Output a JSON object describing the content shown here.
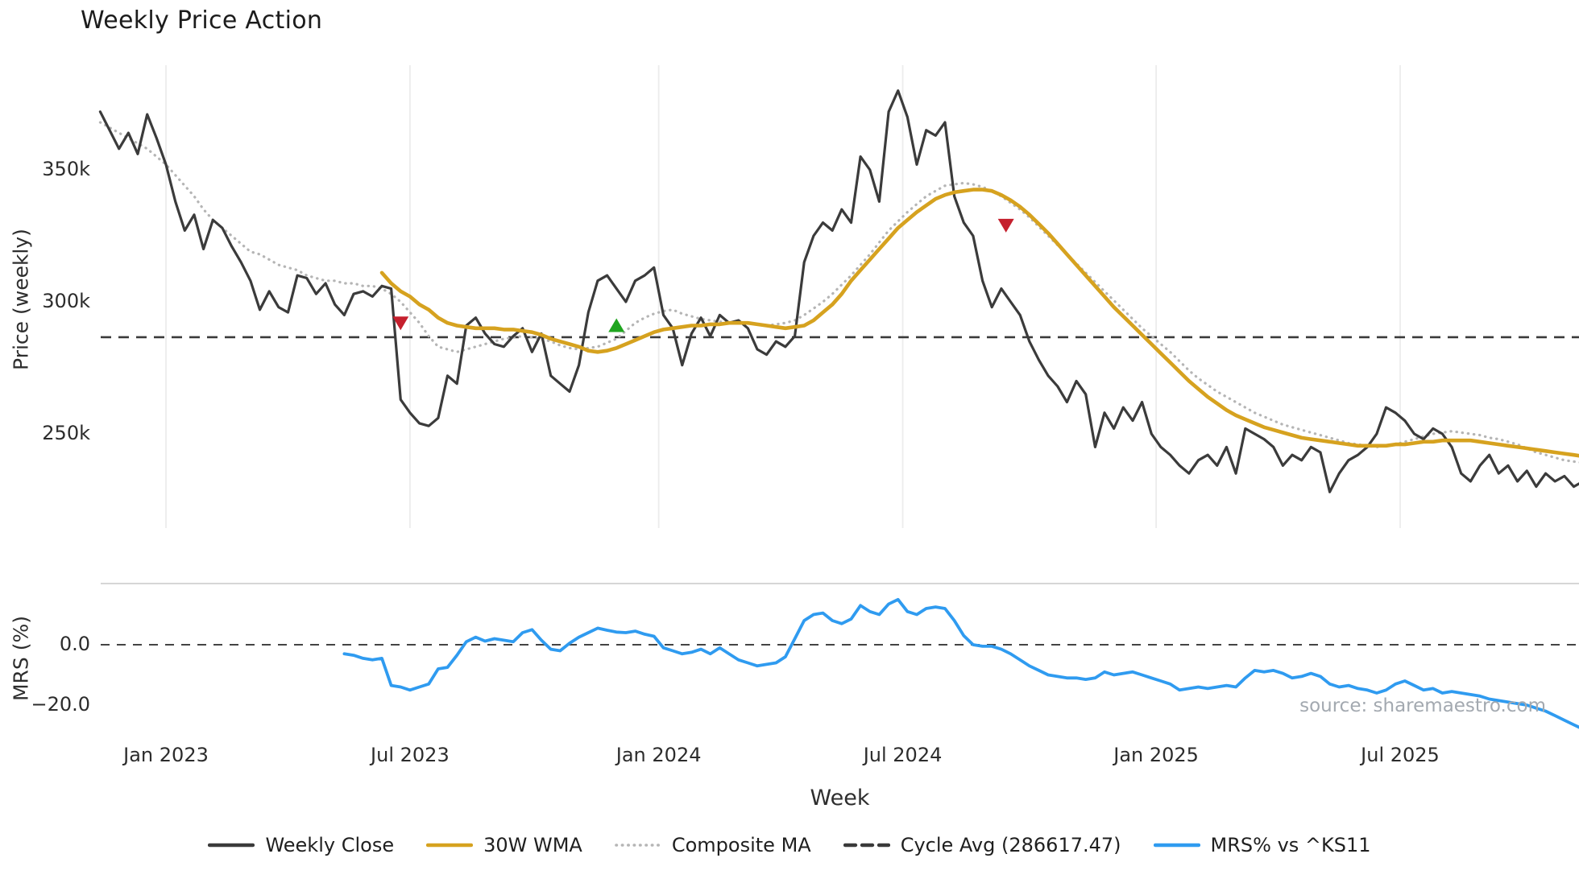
{
  "title": "Weekly Price Action",
  "source_credit": "source: sharemaestro.com",
  "colors": {
    "close": "#3b3b3b",
    "wma": "#d6a21f",
    "composite": "#b5b5b5",
    "cycle": "#3a3a3a",
    "mrs": "#2f9bf0",
    "sell": "#c5202e",
    "buy": "#1fa51f",
    "grid": "#ececec",
    "separator": "#c9c9c9",
    "zero": "#444444"
  },
  "chart_data": {
    "type": "line",
    "title": "Weekly Price Action",
    "unit_note": "price series values are in thousands (k); week index 0 = left edge of plot (~mid-Nov 2022), one point per week",
    "x_axis": {
      "label": "Week",
      "ticks": [
        {
          "label": "Jan 2023",
          "week": 7
        },
        {
          "label": "Jul 2023",
          "week": 33
        },
        {
          "label": "Jan 2024",
          "week": 59.5
        },
        {
          "label": "Jul 2024",
          "week": 85.5
        },
        {
          "label": "Jan 2025",
          "week": 112.5
        },
        {
          "label": "Jul 2025",
          "week": 138.5
        }
      ]
    },
    "price_panel": {
      "ylabel": "Price (weekly)",
      "yticks": [
        {
          "label": "350k",
          "value": 350
        },
        {
          "label": "300k",
          "value": 300
        },
        {
          "label": "250k",
          "value": 250
        }
      ],
      "ylim_k": [
        213,
        392
      ]
    },
    "mrs_panel": {
      "ylabel": "MRS (%)",
      "yticks": [
        {
          "label": "0.0",
          "value": 0
        },
        {
          "label": "−20.0",
          "value": -20
        }
      ],
      "ylim": [
        -30,
        20
      ]
    },
    "cycle_avg_value": 286617.47,
    "series": [
      {
        "name": "Composite MA",
        "color_key": "composite",
        "style": "dotted",
        "width": 3.2,
        "panel": "price",
        "start_week": 0,
        "values": [
          368,
          366,
          364,
          362,
          360,
          358,
          355,
          352,
          348,
          344,
          340,
          335,
          331,
          328,
          325,
          322,
          319,
          318,
          316,
          314,
          313,
          312,
          310,
          309,
          308,
          308,
          307,
          307,
          306,
          306,
          305,
          303,
          300,
          296,
          292,
          287,
          283,
          282,
          281,
          282,
          283,
          284,
          285,
          286,
          286.5,
          287,
          286.5,
          286,
          285,
          283.5,
          282.5,
          282,
          282.5,
          283,
          284.5,
          286,
          289,
          292,
          294,
          295.5,
          296.5,
          297,
          295.5,
          294.5,
          293.5,
          293,
          292.5,
          292,
          292,
          292,
          291.5,
          291,
          291.5,
          292,
          293,
          295,
          297.5,
          300,
          303,
          306.5,
          310,
          314,
          318,
          322.5,
          327,
          330.5,
          334,
          337,
          340,
          342,
          344,
          344.5,
          345,
          344.5,
          343.5,
          342,
          340,
          337.5,
          335,
          332,
          328.5,
          325,
          321.5,
          318,
          314.5,
          311,
          307.5,
          304,
          300.5,
          297,
          293.5,
          290,
          287,
          284,
          281,
          277.5,
          274,
          271,
          268.5,
          266,
          264,
          262,
          260,
          258,
          256.5,
          255,
          253.5,
          252.5,
          251.5,
          250.5,
          249.5,
          248.5,
          247.5,
          246.5,
          246,
          245.5,
          245,
          245.5,
          246,
          247,
          248,
          249,
          250,
          250.5,
          251,
          250.5,
          250,
          249.5,
          248.5,
          248,
          247,
          246,
          244.5,
          243,
          242,
          241,
          240,
          239.5,
          239
        ]
      },
      {
        "name": "Weekly Close",
        "color_key": "close",
        "style": "solid",
        "width": 3.2,
        "panel": "price",
        "start_week": 0,
        "values": [
          372,
          365,
          358,
          364,
          356,
          371,
          362,
          352,
          338,
          327,
          333,
          320,
          331,
          328,
          321,
          315,
          308,
          297,
          304,
          298,
          296,
          310,
          309,
          303,
          307,
          299,
          295,
          303,
          304,
          302,
          306,
          305,
          263,
          258,
          254,
          253,
          256,
          272,
          269,
          291,
          294,
          288,
          284,
          283,
          287,
          290,
          281,
          288,
          272,
          269,
          266,
          276,
          296,
          308,
          310,
          305,
          300,
          308,
          310,
          313,
          295,
          290,
          276,
          288,
          294,
          287,
          295,
          292,
          293,
          290,
          282,
          280,
          285,
          283,
          287,
          315,
          325,
          330,
          327,
          335,
          330,
          355,
          350,
          338,
          372,
          380,
          370,
          352,
          365,
          363,
          368,
          340,
          330,
          325,
          308,
          298,
          305,
          300,
          295,
          285,
          278,
          272,
          268,
          262,
          270,
          265,
          245,
          258,
          252,
          260,
          255,
          262,
          250,
          245,
          242,
          238,
          235,
          240,
          242,
          238,
          245,
          235,
          252,
          250,
          248,
          245,
          238,
          242,
          240,
          245,
          243,
          228,
          235,
          240,
          242,
          245,
          250,
          260,
          258,
          255,
          250,
          248,
          252,
          250,
          245,
          235,
          232,
          238,
          242,
          235,
          238,
          232,
          236,
          230,
          235,
          232,
          234,
          230,
          232
        ]
      },
      {
        "name": "30W WMA",
        "color_key": "wma",
        "style": "solid",
        "width": 4.6,
        "panel": "price",
        "start_week": 30,
        "values": [
          311,
          307,
          304,
          302,
          299,
          297,
          294,
          292,
          291,
          290.5,
          290,
          290,
          290,
          289.5,
          289.5,
          289,
          288.5,
          287.5,
          286,
          285,
          284,
          283,
          281.5,
          281,
          281.5,
          282.5,
          284,
          285.5,
          287,
          288.5,
          289.5,
          290,
          290.5,
          291,
          291,
          291.5,
          291.5,
          292,
          292,
          292,
          291.5,
          291,
          290.5,
          290,
          290.5,
          291,
          293,
          296,
          299,
          303,
          308,
          312,
          316,
          320,
          324,
          328,
          331,
          334,
          336.5,
          339,
          340.5,
          341.5,
          342,
          342.5,
          342.5,
          342,
          340.5,
          338.5,
          336,
          333,
          329.5,
          326,
          322,
          318,
          314,
          310,
          306,
          302,
          298,
          294.5,
          291,
          287.5,
          284,
          280.5,
          277,
          273.5,
          270,
          267,
          264,
          261.5,
          259,
          257,
          255.5,
          254,
          252.5,
          251.5,
          250.5,
          249.5,
          248.5,
          248,
          247.5,
          247,
          246.5,
          246,
          245.5,
          245.5,
          245.5,
          245.5,
          246,
          246,
          246.5,
          247,
          247,
          247.5,
          247.5,
          247.5,
          247.5,
          247,
          246.5,
          246,
          245.5,
          245,
          244.5,
          244,
          243.5,
          243,
          242.5,
          242,
          241.5
        ]
      },
      {
        "name": "MRS% vs ^KS11",
        "color_key": "mrs",
        "style": "solid",
        "width": 3.8,
        "panel": "mrs",
        "start_week": 26,
        "values": [
          -3,
          -3.5,
          -4.5,
          -5,
          -4.5,
          -13.5,
          -14,
          -15,
          -14,
          -13,
          -8,
          -7.5,
          -3.5,
          1,
          2.5,
          1.2,
          2,
          1.5,
          1,
          4,
          5,
          1.5,
          -1.5,
          -2,
          0.5,
          2.5,
          4,
          5.5,
          4.8,
          4.2,
          4,
          4.5,
          3.5,
          2.8,
          -1,
          -2,
          -3,
          -2.5,
          -1.5,
          -3,
          -1,
          -3,
          -5,
          -6,
          -7,
          -6.5,
          -6,
          -4,
          2,
          8,
          10,
          10.5,
          8,
          7,
          8.5,
          13,
          11,
          10,
          13.5,
          15,
          11,
          10,
          12,
          12.5,
          12,
          8,
          3,
          0,
          -0.5,
          -0.5,
          -1.5,
          -3,
          -5,
          -7,
          -8.5,
          -10,
          -10.5,
          -11,
          -11,
          -11.5,
          -11,
          -9,
          -10,
          -9.5,
          -9,
          -10,
          -11,
          -12,
          -13,
          -15,
          -14.5,
          -14,
          -14.5,
          -14,
          -13.5,
          -14,
          -11,
          -8.5,
          -9,
          -8.5,
          -9.5,
          -11,
          -10.5,
          -9.5,
          -10.5,
          -13,
          -14,
          -13.5,
          -14.5,
          -15,
          -16,
          -15,
          -13,
          -12,
          -13.5,
          -15,
          -14.5,
          -16,
          -15.5,
          -16,
          -16.5,
          -17,
          -18,
          -18.5,
          -19,
          -19.5,
          -20,
          -21,
          -22,
          -23.5,
          -25,
          -26.5,
          -28
        ]
      }
    ],
    "markers": [
      {
        "type": "sell",
        "week": 32,
        "value": 292
      },
      {
        "type": "buy",
        "week": 55,
        "value": 291
      },
      {
        "type": "sell",
        "week": 96.5,
        "value": 329
      }
    ],
    "legend": [
      {
        "label": "Weekly Close",
        "style": "solid",
        "color_key": "close"
      },
      {
        "label": "30W WMA",
        "style": "solid",
        "color_key": "wma"
      },
      {
        "label": "Composite MA",
        "style": "dotted",
        "color_key": "composite"
      },
      {
        "label": "Cycle Avg (286617.47)",
        "style": "dashed",
        "color_key": "cycle"
      },
      {
        "label": "MRS% vs ^KS11",
        "style": "solid",
        "color_key": "mrs"
      }
    ]
  }
}
